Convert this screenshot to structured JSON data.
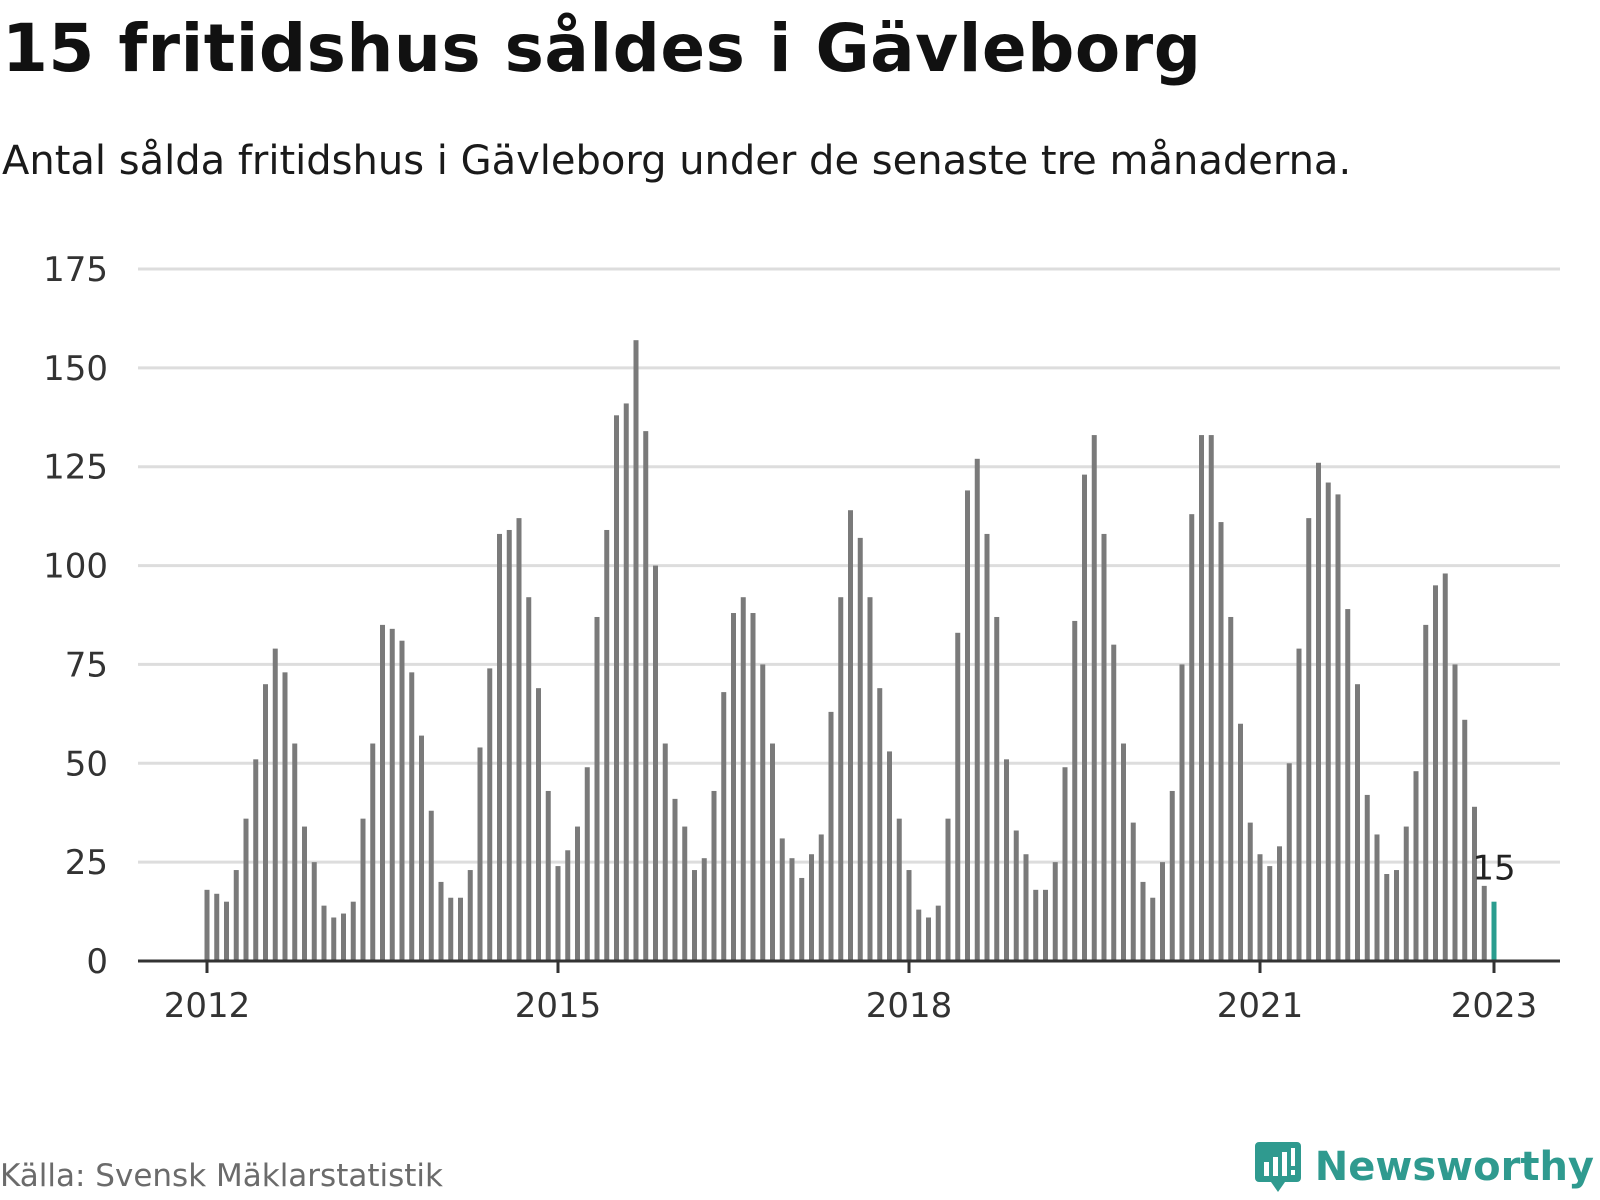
{
  "header": {
    "title": "15 fritidshus såldes i Gävleborg",
    "subtitle": "Antal sålda fritidshus i Gävleborg under de senaste tre månaderna."
  },
  "footer": {
    "source": "Källa: Svensk Mäklarstatistik",
    "brand": "Newsworthy"
  },
  "colors": {
    "bar": "#7a7a7a",
    "highlight": "#2a9d8f",
    "grid": "#dddddd",
    "axis": "#333333",
    "brand": "#2f9a8f"
  },
  "icons": {
    "brand_logo": "newsworthy-logo-icon"
  },
  "chart_data": {
    "type": "bar",
    "title": "15 fritidshus såldes i Gävleborg",
    "subtitle": "Antal sålda fritidshus i Gävleborg under de senaste tre månaderna.",
    "xlabel": "",
    "ylabel": "",
    "ylim": [
      0,
      175
    ],
    "yticks": [
      0,
      25,
      50,
      75,
      100,
      125,
      150,
      175
    ],
    "xticks": [
      "2012",
      "2015",
      "2018",
      "2021",
      "2023"
    ],
    "grid": true,
    "x_start": "2012-01",
    "x_end": "2023-01",
    "highlight_label": "15",
    "values": [
      18,
      17,
      15,
      23,
      36,
      51,
      70,
      79,
      73,
      55,
      34,
      25,
      14,
      11,
      12,
      15,
      36,
      55,
      85,
      84,
      81,
      73,
      57,
      38,
      20,
      16,
      16,
      23,
      54,
      74,
      108,
      109,
      112,
      92,
      69,
      43,
      24,
      28,
      34,
      49,
      87,
      109,
      138,
      141,
      157,
      134,
      100,
      55,
      41,
      34,
      23,
      26,
      43,
      68,
      88,
      92,
      88,
      75,
      55,
      31,
      26,
      21,
      27,
      32,
      63,
      92,
      114,
      107,
      92,
      69,
      53,
      36,
      23,
      13,
      11,
      14,
      36,
      83,
      119,
      127,
      108,
      87,
      51,
      33,
      27,
      18,
      18,
      25,
      49,
      86,
      123,
      133,
      108,
      80,
      55,
      35,
      20,
      16,
      25,
      43,
      75,
      113,
      133,
      133,
      111,
      87,
      60,
      35,
      27,
      24,
      29,
      50,
      79,
      112,
      126,
      121,
      118,
      89,
      70,
      42,
      32,
      22,
      23,
      34,
      48,
      85,
      95,
      98,
      75,
      61,
      39,
      19,
      15
    ]
  }
}
